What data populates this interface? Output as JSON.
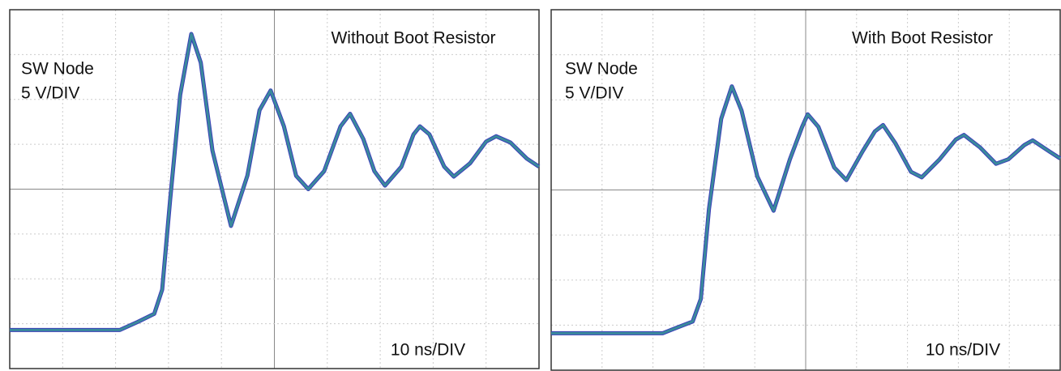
{
  "chart_data": [
    {
      "type": "line",
      "title": "Without Boot Resistor",
      "channel_label": "SW Node",
      "y_scale": "5 V/DIV",
      "x_scale": "10 ns/DIV",
      "x": [
        0,
        20.8,
        24.2,
        27.3,
        28.8,
        30.3,
        32.2,
        34.3,
        36.1,
        38.3,
        41.8,
        44.9,
        47.2,
        49.3,
        51.8,
        54.1,
        56.4,
        59.4,
        62.5,
        64.3,
        66.8,
        68.9,
        70.9,
        74.0,
        76.3,
        77.5,
        79.3,
        82.1,
        83.9,
        87.0,
        90.0,
        91.9,
        94.6,
        97.7,
        100
      ],
      "values": [
        -15.7,
        -15.7,
        -14.8,
        -13.9,
        -11.2,
        -1.2,
        10.5,
        17.3,
        14.1,
        4.3,
        -4.1,
        1.5,
        8.8,
        11.0,
        7.0,
        1.5,
        0,
        2.0,
        7.0,
        8.4,
        5.6,
        2.0,
        0.4,
        2.5,
        6.1,
        7.0,
        6.1,
        2.5,
        1.4,
        2.9,
        5.3,
        5.9,
        5.2,
        3.4,
        2.5
      ],
      "color": "#3a8a9c",
      "xlim": [
        0,
        100
      ],
      "ylim": [
        -20,
        20
      ],
      "grid": true
    },
    {
      "type": "line",
      "title": "With Boot Resistor",
      "channel_label": "SW Node",
      "y_scale": "5 V/DIV",
      "x_scale": "10 ns/DIV",
      "x": [
        0,
        21.9,
        24.6,
        27.8,
        29.4,
        31.0,
        33.4,
        35.5,
        37.4,
        40.5,
        43.7,
        46.9,
        49.3,
        50.4,
        52.5,
        55.6,
        58.0,
        61.2,
        63.6,
        65.2,
        67.6,
        70.7,
        72.8,
        76.3,
        79.5,
        81.1,
        84.3,
        87.4,
        89.8,
        93.0,
        94.6,
        97.8,
        100
      ],
      "values": [
        -15.9,
        -15.9,
        -15.3,
        -14.6,
        -12.1,
        -2.1,
        7.9,
        11.5,
        8.8,
        1.5,
        -2.3,
        3.4,
        7.0,
        8.4,
        7.0,
        2.5,
        1.1,
        4.3,
        6.5,
        7.2,
        5.2,
        2.0,
        1.4,
        3.4,
        5.6,
        6.1,
        4.7,
        2.9,
        3.4,
        5.0,
        5.5,
        4.3,
        3.5
      ],
      "color": "#3a8a9c",
      "xlim": [
        0,
        100
      ],
      "ylim": [
        -20,
        20
      ],
      "grid": true
    }
  ]
}
